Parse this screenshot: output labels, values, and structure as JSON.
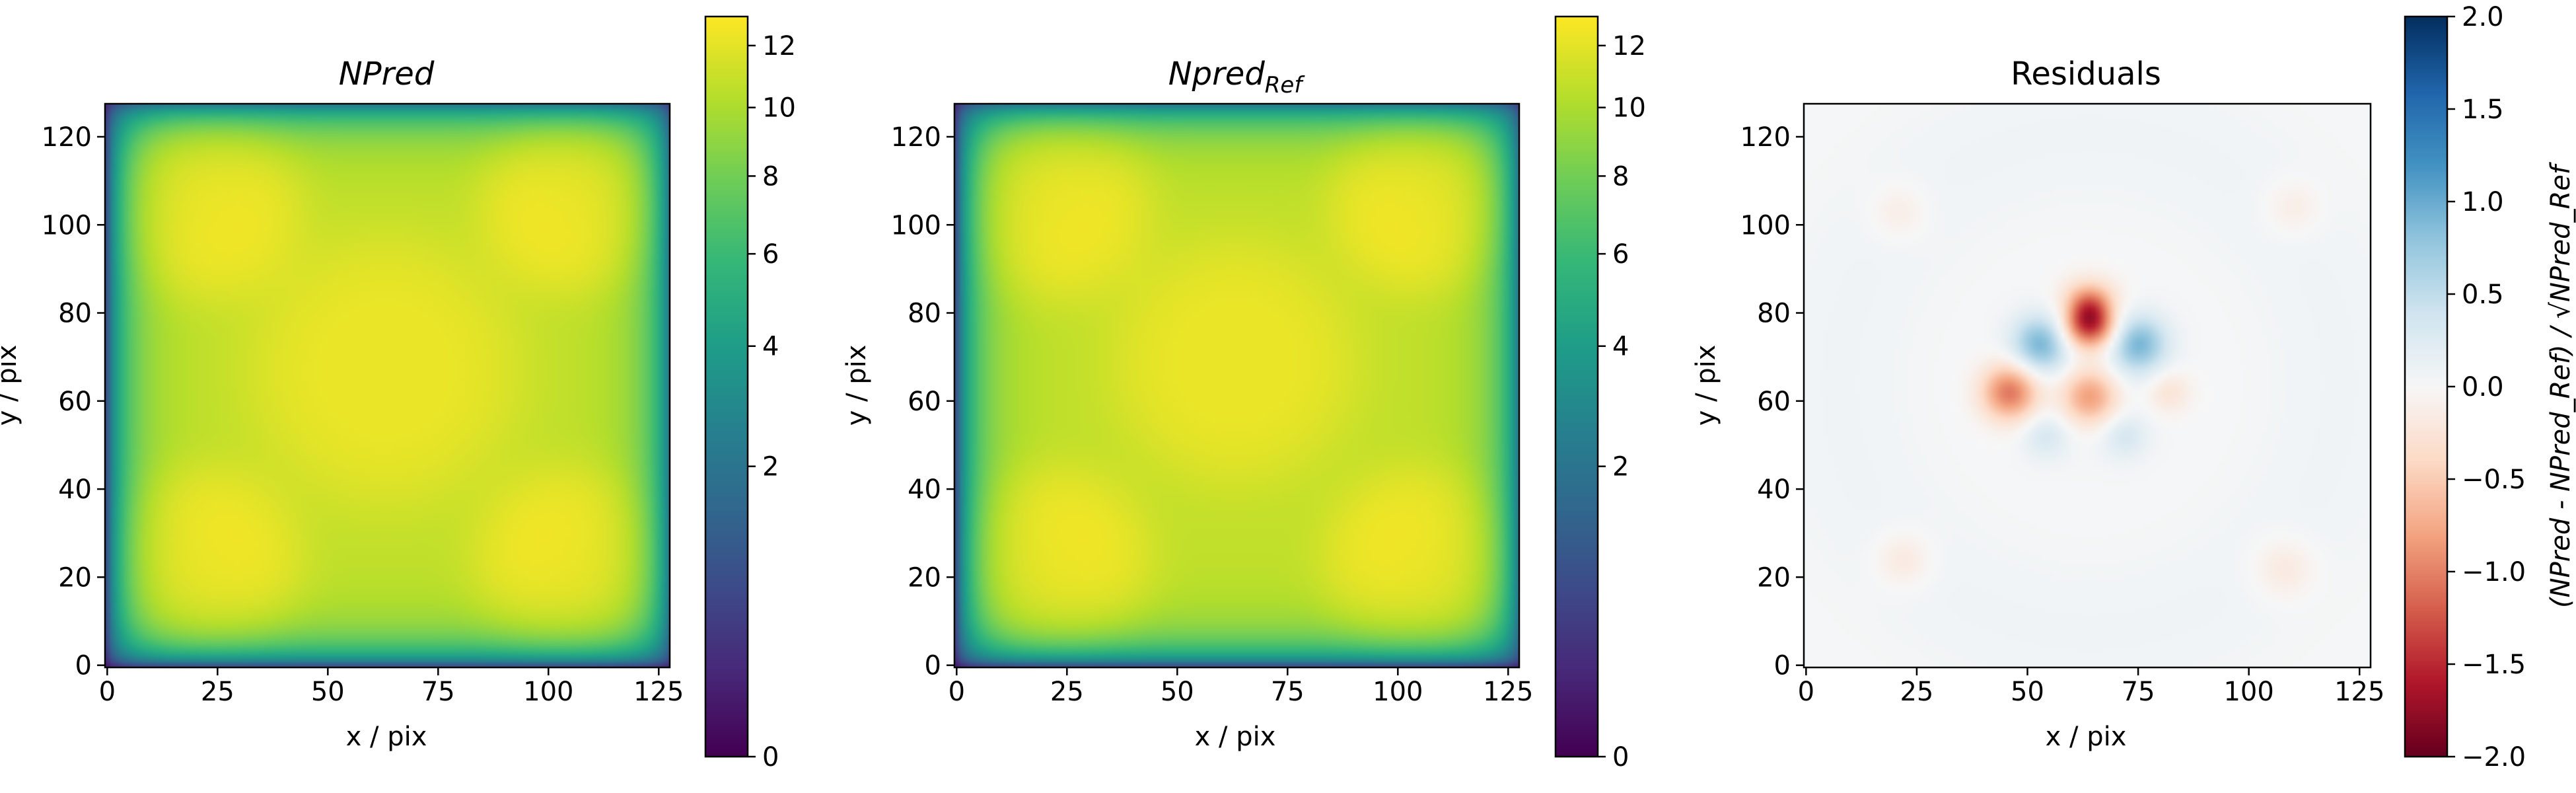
{
  "figure": {
    "panels": [
      {
        "id": "npred",
        "title": "NPred",
        "title_italic": true,
        "xlabel": "x / pix",
        "ylabel": "y / pix",
        "colorbar": {
          "cmap": "viridis",
          "scale": "sqrt",
          "range": [
            0,
            13
          ],
          "ticks": [
            0,
            2,
            4,
            6,
            8,
            10,
            12
          ],
          "tick_labels": [
            "0",
            "2",
            "4",
            "6",
            "8",
            "10",
            "12"
          ],
          "label": ""
        }
      },
      {
        "id": "npred-ref",
        "title_main": "Npred",
        "title_sub": "Ref",
        "title_italic": true,
        "xlabel": "x / pix",
        "ylabel": "y / pix",
        "colorbar": {
          "cmap": "viridis",
          "scale": "sqrt",
          "range": [
            0,
            13
          ],
          "ticks": [
            0,
            2,
            4,
            6,
            8,
            10,
            12
          ],
          "tick_labels": [
            "0",
            "2",
            "4",
            "6",
            "8",
            "10",
            "12"
          ],
          "label": ""
        }
      },
      {
        "id": "residuals",
        "title": "Residuals",
        "title_italic": false,
        "xlabel": "x / pix",
        "ylabel": "y / pix",
        "colorbar": {
          "cmap": "RdBu",
          "scale": "linear",
          "range": [
            -2.0,
            2.0
          ],
          "ticks": [
            -2.0,
            -1.5,
            -1.0,
            -0.5,
            0.0,
            0.5,
            1.0,
            1.5,
            2.0
          ],
          "tick_labels": [
            "−2.0",
            "−1.5",
            "−1.0",
            "−0.5",
            "0.0",
            "0.5",
            "1.0",
            "1.5",
            "2.0"
          ],
          "label": "(NPred - NPred_Ref) / √NPred_Ref"
        }
      }
    ]
  },
  "chart_data": [
    {
      "type": "heatmap",
      "title": "NPred",
      "xlabel": "x / pix",
      "ylabel": "y / pix",
      "xlim": [
        0,
        128
      ],
      "ylim": [
        0,
        128
      ],
      "xticks": [
        0,
        25,
        50,
        75,
        100,
        125
      ],
      "yticks": [
        0,
        20,
        40,
        60,
        80,
        100,
        120
      ],
      "background_level": 10.8,
      "blobs": [
        {
          "x": 22,
          "y": 105,
          "sigma": 16,
          "peak": 12.6
        },
        {
          "x": 105,
          "y": 105,
          "sigma": 15,
          "peak": 12.6
        },
        {
          "x": 22,
          "y": 23,
          "sigma": 16,
          "peak": 12.6
        },
        {
          "x": 105,
          "y": 23,
          "sigma": 16,
          "peak": 12.6
        },
        {
          "x": 63,
          "y": 67,
          "sigma": 22,
          "peak": 12.3
        }
      ],
      "colorbar_range": [
        0,
        13
      ]
    },
    {
      "type": "heatmap",
      "title": "Npred_Ref",
      "xlabel": "x / pix",
      "ylabel": "y / pix",
      "xlim": [
        0,
        128
      ],
      "ylim": [
        0,
        128
      ],
      "xticks": [
        0,
        25,
        50,
        75,
        100,
        125
      ],
      "yticks": [
        0,
        20,
        40,
        60,
        80,
        100,
        120
      ],
      "background_level": 10.8,
      "blobs": [
        {
          "x": 22,
          "y": 105,
          "sigma": 16,
          "peak": 12.6
        },
        {
          "x": 105,
          "y": 105,
          "sigma": 15,
          "peak": 12.6
        },
        {
          "x": 22,
          "y": 23,
          "sigma": 16,
          "peak": 12.6
        },
        {
          "x": 105,
          "y": 23,
          "sigma": 16,
          "peak": 12.6
        },
        {
          "x": 63,
          "y": 69,
          "sigma": 20,
          "peak": 12.3
        }
      ],
      "colorbar_range": [
        0,
        13
      ]
    },
    {
      "type": "heatmap",
      "title": "Residuals",
      "xlabel": "x / pix",
      "ylabel": "y / pix",
      "xlim": [
        0,
        128
      ],
      "ylim": [
        0,
        128
      ],
      "xticks": [
        0,
        25,
        50,
        75,
        100,
        125
      ],
      "yticks": [
        0,
        20,
        40,
        60,
        80,
        100,
        120
      ],
      "background_level": 0.05,
      "blobs": [
        {
          "x": 64,
          "y": 79,
          "sigma": 4.5,
          "peak": -2.0
        },
        {
          "x": 46,
          "y": 62,
          "sigma": 4.5,
          "peak": -1.1
        },
        {
          "x": 64,
          "y": 61,
          "sigma": 4.5,
          "peak": -0.9
        },
        {
          "x": 82,
          "y": 62,
          "sigma": 3.5,
          "peak": -0.3
        },
        {
          "x": 53,
          "y": 73,
          "sigma": 4.5,
          "peak": 0.9
        },
        {
          "x": 75,
          "y": 73,
          "sigma": 4.5,
          "peak": 0.9
        },
        {
          "x": 59,
          "y": 80,
          "sigma": 3,
          "peak": 0.3
        },
        {
          "x": 69,
          "y": 80,
          "sigma": 3,
          "peak": 0.3
        },
        {
          "x": 54,
          "y": 52,
          "sigma": 3.5,
          "peak": 0.3
        },
        {
          "x": 72,
          "y": 52,
          "sigma": 3.5,
          "peak": 0.3
        },
        {
          "x": 21,
          "y": 103,
          "sigma": 4.5,
          "peak": -0.2
        },
        {
          "x": 110,
          "y": 104,
          "sigma": 4.5,
          "peak": -0.2
        },
        {
          "x": 22,
          "y": 24,
          "sigma": 4.5,
          "peak": -0.25
        },
        {
          "x": 108,
          "y": 22,
          "sigma": 5,
          "peak": -0.25
        }
      ],
      "colorbar_range": [
        -2.0,
        2.0
      ]
    }
  ]
}
